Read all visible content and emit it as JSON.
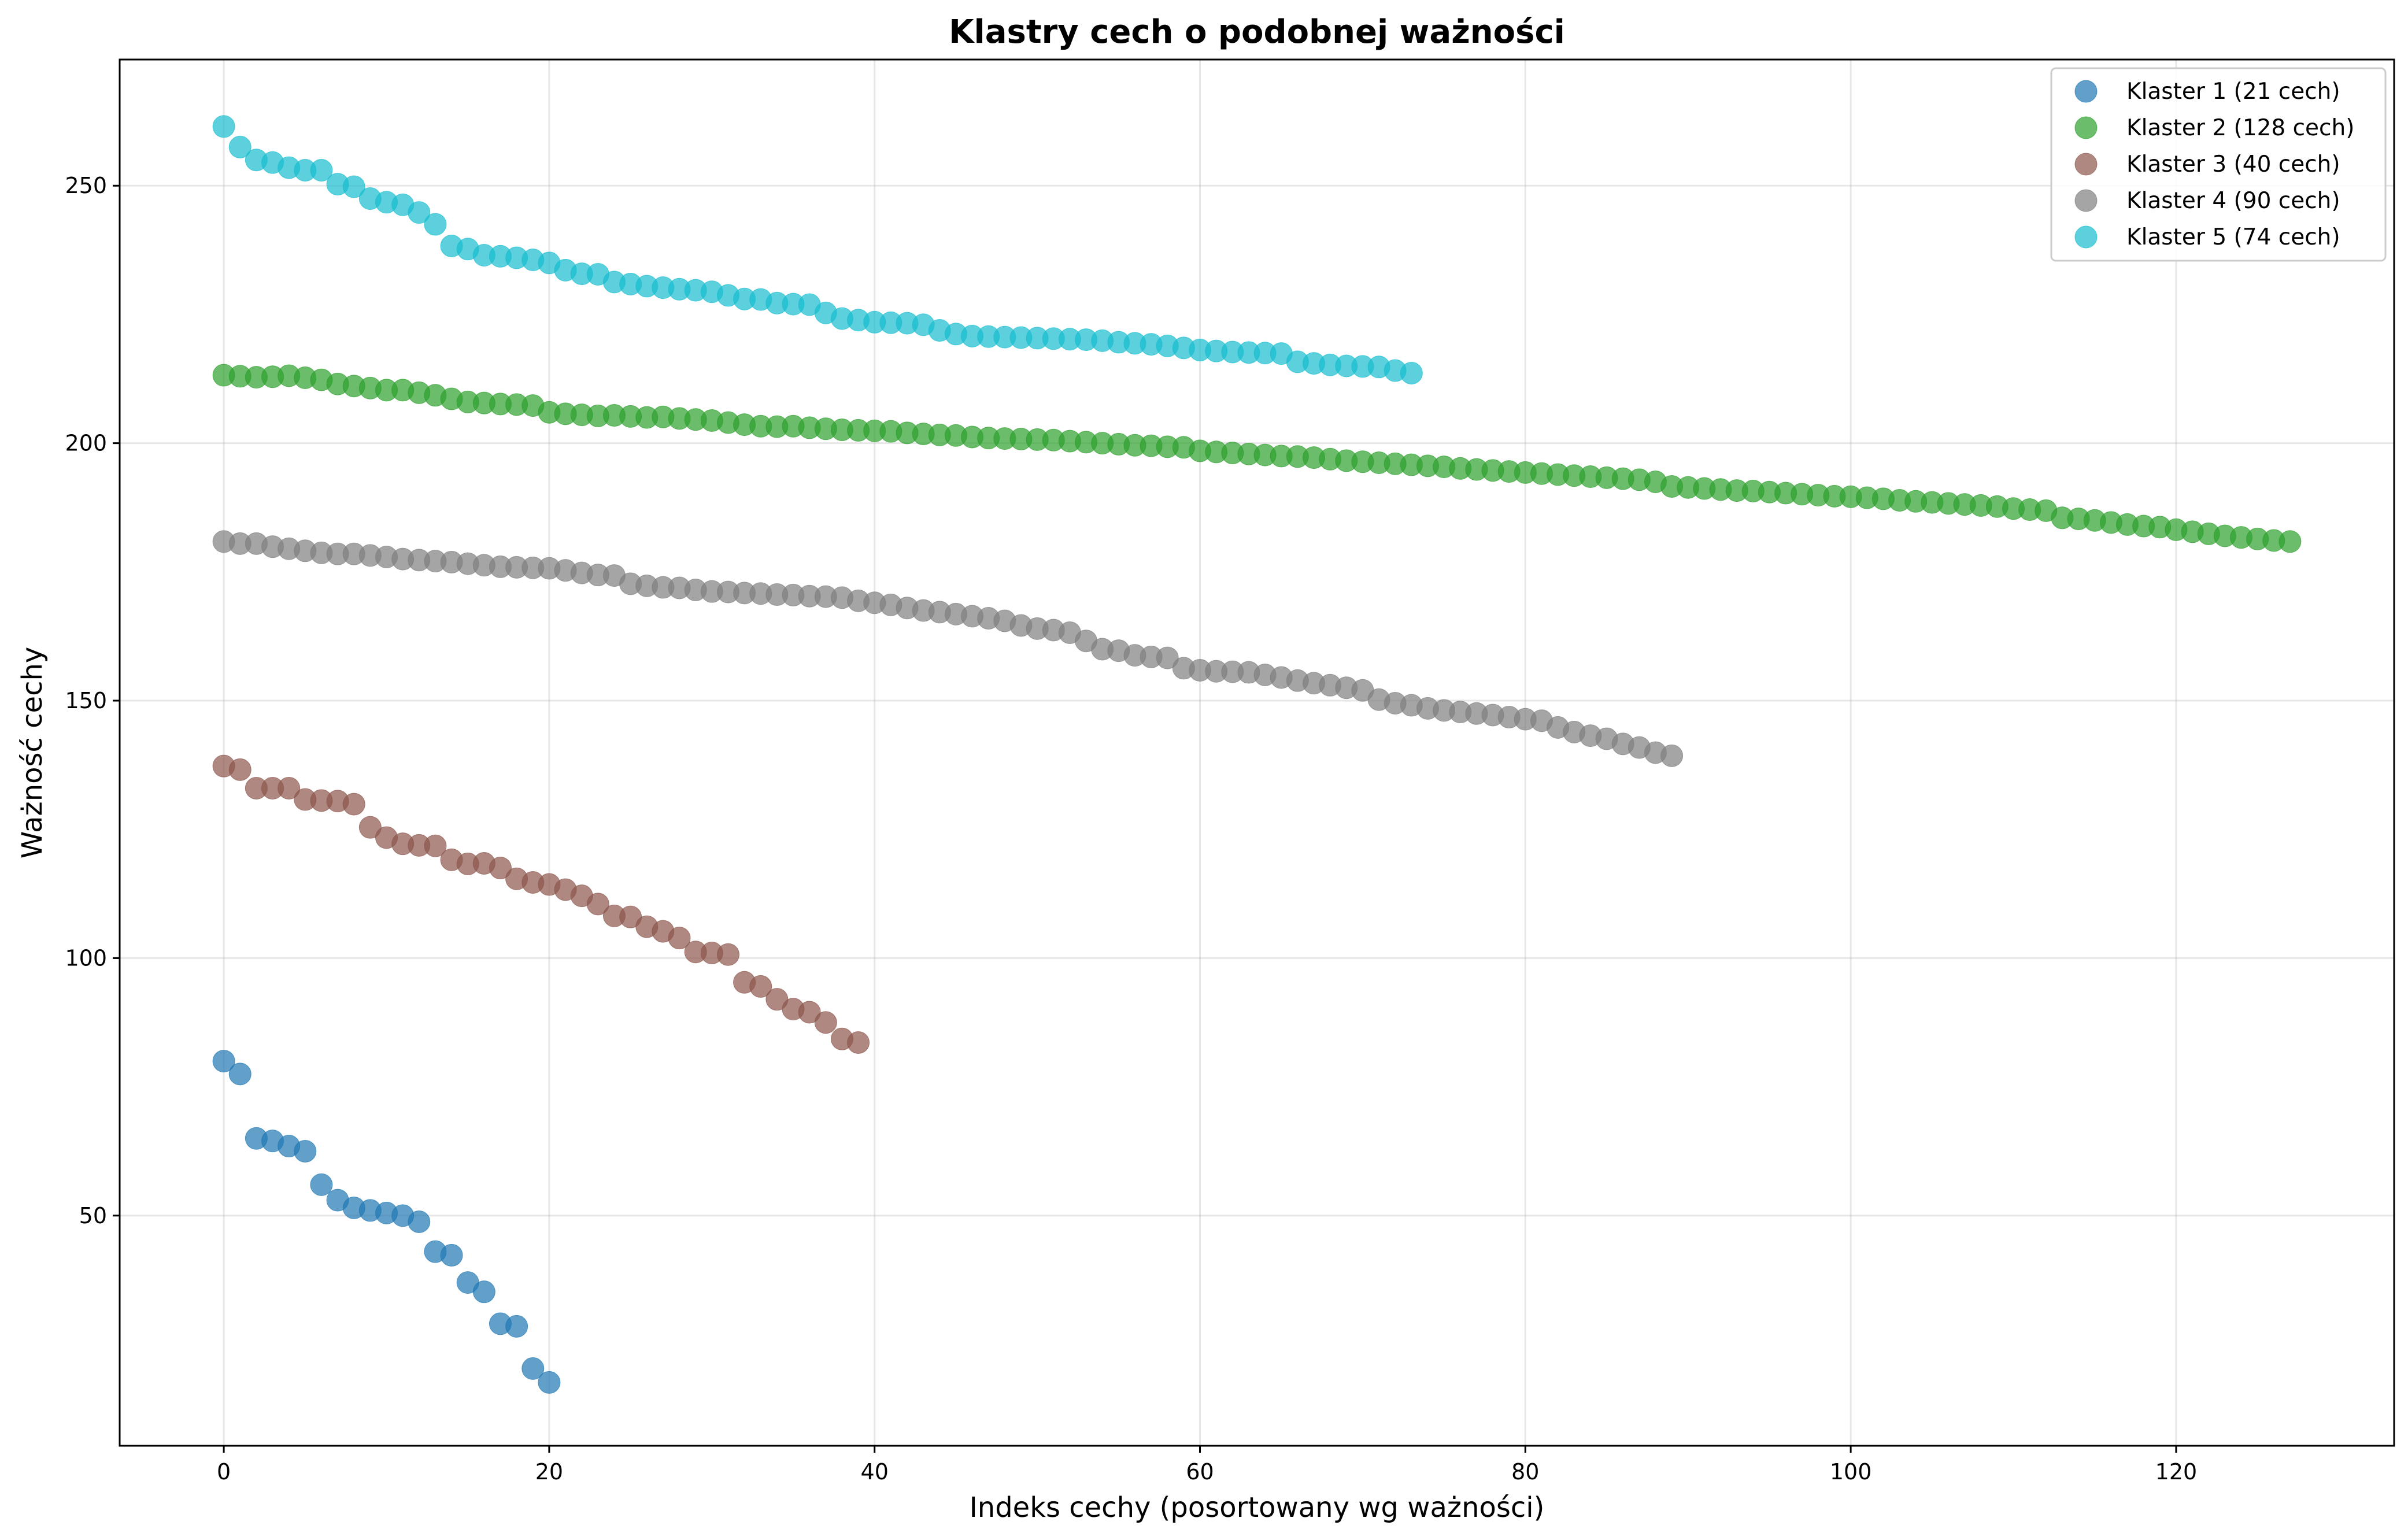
{
  "chart_data": {
    "type": "scatter",
    "title": "Klastry cech o podobnej ważności",
    "xlabel": "Indeks cechy (posortowany wg ważności)",
    "ylabel": "Ważność cechy",
    "xlim": [
      -6.4,
      133.4
    ],
    "ylim": [
      5.3,
      274.5
    ],
    "xticks": [
      0,
      20,
      40,
      60,
      80,
      100,
      120
    ],
    "yticks": [
      50,
      100,
      150,
      200,
      250
    ],
    "grid": true,
    "legend_position": "top-right",
    "series": [
      {
        "name": "Klaster 1 (21 cech)",
        "color": "#1f77b4",
        "y": [
          80.0,
          77.5,
          65.0,
          64.5,
          63.5,
          62.5,
          56.0,
          53.0,
          51.5,
          51.0,
          50.5,
          50.0,
          48.8,
          43.0,
          42.3,
          37.0,
          35.2,
          29.0,
          28.5,
          20.3,
          17.6
        ]
      },
      {
        "name": "Klaster 2 (128 cech)",
        "color": "#2ca02c",
        "y": [
          213.2,
          213.0,
          212.8,
          212.9,
          213.1,
          212.7,
          212.3,
          211.5,
          211.1,
          210.7,
          210.3,
          210.3,
          209.8,
          209.3,
          208.6,
          208.0,
          207.8,
          207.6,
          207.5,
          207.3,
          206.0,
          205.7,
          205.5,
          205.3,
          205.4,
          205.2,
          205.0,
          205.1,
          204.8,
          204.6,
          204.4,
          204.0,
          203.6,
          203.3,
          203.2,
          203.3,
          203.0,
          202.8,
          202.6,
          202.5,
          202.4,
          202.3,
          202.0,
          201.8,
          201.6,
          201.5,
          201.2,
          201.0,
          200.9,
          200.8,
          200.7,
          200.6,
          200.4,
          200.2,
          200.0,
          199.8,
          199.6,
          199.5,
          199.3,
          199.2,
          198.5,
          198.3,
          198.1,
          197.9,
          197.7,
          197.5,
          197.4,
          197.2,
          196.9,
          196.6,
          196.4,
          196.2,
          196.0,
          195.8,
          195.6,
          195.4,
          195.1,
          194.9,
          194.7,
          194.5,
          194.3,
          194.1,
          193.9,
          193.7,
          193.5,
          193.3,
          193.1,
          192.9,
          192.5,
          191.6,
          191.4,
          191.2,
          191.0,
          190.8,
          190.7,
          190.5,
          190.3,
          190.1,
          189.9,
          189.7,
          189.6,
          189.4,
          189.2,
          188.9,
          188.7,
          188.5,
          188.3,
          188.1,
          187.9,
          187.7,
          187.3,
          187.1,
          186.9,
          185.5,
          185.3,
          185.0,
          184.6,
          184.2,
          183.9,
          183.7,
          183.2,
          182.8,
          182.4,
          182.0,
          181.7,
          181.4,
          181.1,
          180.9
        ]
      },
      {
        "name": "Klaster 3 (40 cech)",
        "color": "#8c564b",
        "y": [
          137.3,
          136.6,
          133.0,
          133.0,
          133.0,
          130.8,
          130.6,
          130.5,
          129.9,
          125.4,
          123.4,
          122.2,
          121.9,
          121.8,
          119.1,
          118.3,
          118.4,
          117.5,
          115.4,
          114.7,
          114.3,
          113.3,
          112.1,
          110.5,
          108.2,
          108.0,
          106.1,
          105.2,
          103.9,
          101.2,
          101.0,
          100.7,
          95.3,
          94.5,
          92.0,
          90.1,
          89.5,
          87.5,
          84.3,
          83.6
        ]
      },
      {
        "name": "Klaster 4 (90 cech)",
        "color": "#7f7f7f",
        "y": [
          180.9,
          180.5,
          180.5,
          179.9,
          179.5,
          179.1,
          178.7,
          178.5,
          178.5,
          178.2,
          177.9,
          177.5,
          177.3,
          177.1,
          176.9,
          176.6,
          176.3,
          176.0,
          175.9,
          175.8,
          175.7,
          175.3,
          174.8,
          174.4,
          174.3,
          172.7,
          172.3,
          172.0,
          171.9,
          171.5,
          171.2,
          171.1,
          170.9,
          170.8,
          170.6,
          170.5,
          170.3,
          170.2,
          170.0,
          169.4,
          169.0,
          168.6,
          168.0,
          167.5,
          167.2,
          166.8,
          166.4,
          166.0,
          165.5,
          164.6,
          164.0,
          163.7,
          163.2,
          161.6,
          160.0,
          159.7,
          158.8,
          158.5,
          158.3,
          156.3,
          155.9,
          155.7,
          155.6,
          155.5,
          155.0,
          154.5,
          153.9,
          153.4,
          153.0,
          152.5,
          152.0,
          150.2,
          149.5,
          149.1,
          148.5,
          148.1,
          147.8,
          147.5,
          147.2,
          146.8,
          146.4,
          146.1,
          144.8,
          143.9,
          143.2,
          142.6,
          141.6,
          140.9,
          139.9,
          139.3
        ]
      },
      {
        "name": "Klaster 5 (74 cech)",
        "color": "#17becf",
        "y": [
          261.5,
          257.5,
          255.0,
          254.5,
          253.5,
          253.0,
          253.0,
          250.3,
          249.8,
          247.5,
          246.8,
          246.3,
          244.8,
          242.5,
          238.3,
          237.7,
          236.5,
          236.3,
          236.0,
          235.6,
          235.0,
          233.6,
          232.9,
          232.8,
          231.3,
          230.9,
          230.5,
          230.2,
          229.9,
          229.7,
          229.4,
          228.7,
          228.0,
          227.9,
          227.2,
          227.0,
          226.9,
          225.3,
          224.2,
          223.9,
          223.5,
          223.4,
          223.3,
          223.0,
          221.9,
          221.2,
          220.8,
          220.7,
          220.6,
          220.5,
          220.4,
          220.3,
          220.2,
          220.1,
          219.9,
          219.6,
          219.4,
          219.2,
          218.9,
          218.5,
          218.1,
          217.9,
          217.7,
          217.6,
          217.5,
          217.4,
          215.8,
          215.5,
          215.2,
          215.0,
          214.9,
          214.8,
          214.1,
          213.6
        ]
      }
    ]
  }
}
